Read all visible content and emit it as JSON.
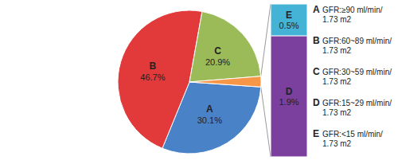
{
  "chart_data": {
    "type": "pie",
    "categories": [
      "A",
      "B",
      "C",
      "D",
      "E"
    ],
    "values": [
      30.1,
      46.7,
      20.9,
      1.9,
      0.5
    ],
    "value_labels": [
      "30.1%",
      "46.7%",
      "20.9%",
      "1.9%",
      "0.5%"
    ],
    "colors": [
      "#4a82c8",
      "#e23a3a",
      "#9bbb59",
      "#7b3f9e",
      "#45b3d6"
    ],
    "annotations": [
      "GFR:≥90 ml/min/1.73 m2",
      "GFR:60~89 ml/min/1.73 m2",
      "GFR:30~59 ml/min/1.73 m2",
      "GFR:15~29 ml/min/1.73 m2",
      "GFR:<15 ml/min/1.73 m2"
    ],
    "data_labels": true
  }
}
